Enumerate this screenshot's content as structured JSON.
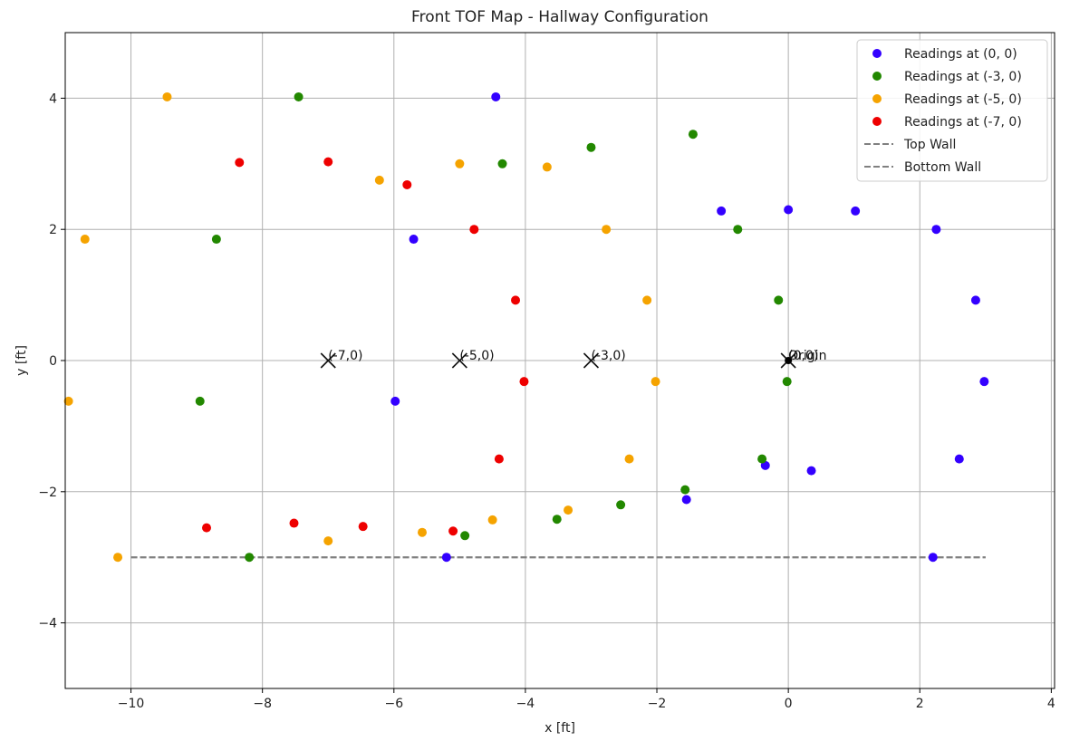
{
  "chart_data": {
    "type": "scatter",
    "title": "Front TOF Map - Hallway Configuration",
    "xlabel": "x [ft]",
    "ylabel": "y [ft]",
    "xlim": [
      -11,
      4.05
    ],
    "ylim": [
      -5,
      5
    ],
    "xticks": [
      -10,
      -8,
      -6,
      -4,
      -2,
      0,
      2,
      4
    ],
    "yticks": [
      -4,
      -2,
      0,
      2,
      4
    ],
    "xtick_labels": [
      "−10",
      "−8",
      "−6",
      "−4",
      "−2",
      "0",
      "2",
      "4"
    ],
    "ytick_labels": [
      "−4",
      "−2",
      "0",
      "2",
      "4"
    ],
    "grid": true,
    "legend_position": "top-right",
    "series": [
      {
        "name": "Readings at (0, 0)",
        "color": "#3300ff",
        "points": [
          [
            -4.45,
            4.02
          ],
          [
            -1.02,
            2.28
          ],
          [
            0.0,
            2.3
          ],
          [
            1.02,
            2.28
          ],
          [
            2.25,
            2.0
          ],
          [
            -5.7,
            1.85
          ],
          [
            2.85,
            0.92
          ],
          [
            2.98,
            -0.32
          ],
          [
            -5.98,
            -0.62
          ],
          [
            -0.35,
            -1.6
          ],
          [
            0.35,
            -1.68
          ],
          [
            2.6,
            -1.5
          ],
          [
            -1.55,
            -2.12
          ],
          [
            -5.2,
            -3.0
          ],
          [
            2.2,
            -3.0
          ]
        ]
      },
      {
        "name": "Readings at (-3, 0)",
        "color": "#228800",
        "points": [
          [
            -7.45,
            4.02
          ],
          [
            -1.45,
            3.45
          ],
          [
            -3.0,
            3.25
          ],
          [
            -4.35,
            3.0
          ],
          [
            -8.7,
            1.85
          ],
          [
            -0.77,
            2.0
          ],
          [
            -0.15,
            0.92
          ],
          [
            -0.02,
            -0.32
          ],
          [
            -8.95,
            -0.62
          ],
          [
            -0.4,
            -1.5
          ],
          [
            -1.57,
            -1.97
          ],
          [
            -2.55,
            -2.2
          ],
          [
            -3.52,
            -2.42
          ],
          [
            -4.92,
            -2.67
          ],
          [
            -8.2,
            -3.0
          ]
        ]
      },
      {
        "name": "Readings at (-5, 0)",
        "color": "#f5a300",
        "points": [
          [
            -9.45,
            4.02
          ],
          [
            -5.0,
            3.0
          ],
          [
            -3.67,
            2.95
          ],
          [
            -6.22,
            2.75
          ],
          [
            -10.7,
            1.85
          ],
          [
            -2.77,
            2.0
          ],
          [
            -2.15,
            0.92
          ],
          [
            -2.02,
            -0.32
          ],
          [
            -10.95,
            -0.62
          ],
          [
            -2.42,
            -1.5
          ],
          [
            -3.35,
            -2.28
          ],
          [
            -4.5,
            -2.43
          ],
          [
            -5.57,
            -2.62
          ],
          [
            -7.0,
            -2.75
          ],
          [
            -10.2,
            -3.0
          ]
        ]
      },
      {
        "name": "Readings at (-7, 0)",
        "color": "#ee0000",
        "points": [
          [
            -8.35,
            3.02
          ],
          [
            -7.0,
            3.03
          ],
          [
            -5.8,
            2.68
          ],
          [
            -4.78,
            2.0
          ],
          [
            -4.15,
            0.92
          ],
          [
            -4.02,
            -0.32
          ],
          [
            -4.4,
            -1.5
          ],
          [
            -5.1,
            -2.6
          ],
          [
            -6.47,
            -2.53
          ],
          [
            -7.52,
            -2.48
          ],
          [
            -8.85,
            -2.55
          ]
        ]
      }
    ],
    "lines": [
      {
        "name": "Top Wall",
        "style": "dashed",
        "color": "#808080",
        "x": [
          -10,
          3
        ],
        "y": [
          -3,
          -3
        ]
      },
      {
        "name": "Bottom Wall",
        "style": "dashed",
        "color": "#808080",
        "x": [
          -10,
          3
        ],
        "y": [
          -3,
          -3
        ]
      }
    ],
    "markers": [
      {
        "x": -7,
        "y": 0,
        "label": "(-7,0)"
      },
      {
        "x": -5,
        "y": 0,
        "label": "(-5,0)"
      },
      {
        "x": -3,
        "y": 0,
        "label": "(-3,0)"
      },
      {
        "x": 0,
        "y": 0,
        "label": "(0,0)"
      }
    ],
    "origin": {
      "x": 0,
      "y": 0,
      "label": "Origin"
    }
  }
}
